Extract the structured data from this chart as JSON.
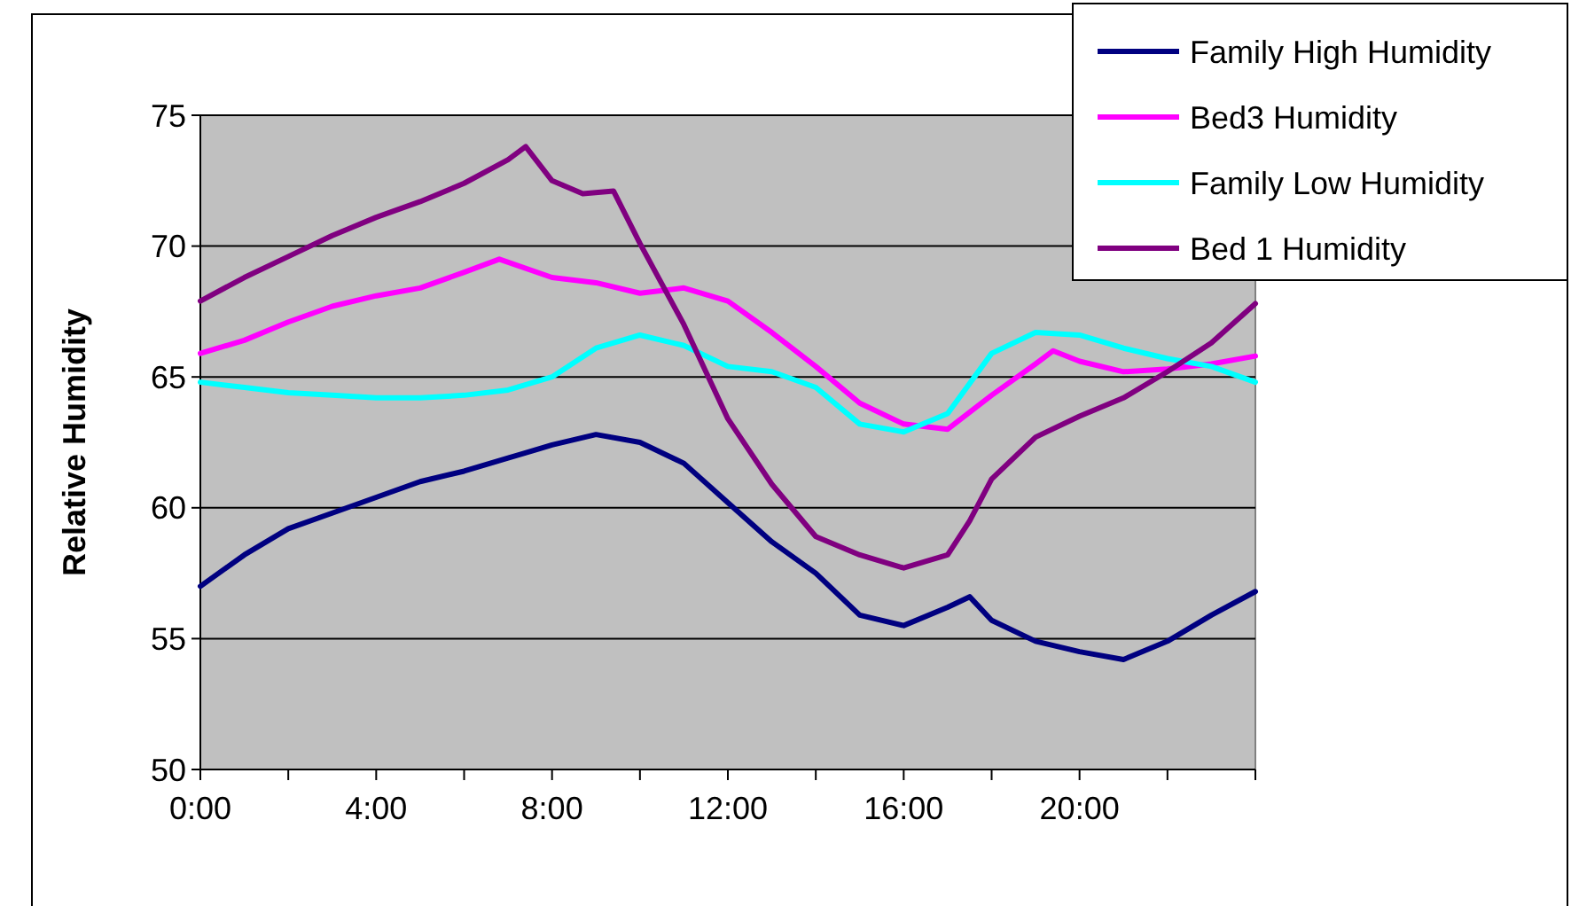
{
  "chart_data": {
    "type": "line",
    "ylabel": "Relative Humidity",
    "xlim": [
      0,
      24
    ],
    "ylim": [
      50,
      75
    ],
    "xticks": [
      {
        "value": 0,
        "label": "0:00"
      },
      {
        "value": 2,
        "label": null
      },
      {
        "value": 4,
        "label": "4:00"
      },
      {
        "value": 6,
        "label": null
      },
      {
        "value": 8,
        "label": "8:00"
      },
      {
        "value": 10,
        "label": null
      },
      {
        "value": 12,
        "label": "12:00"
      },
      {
        "value": 14,
        "label": null
      },
      {
        "value": 16,
        "label": "16:00"
      },
      {
        "value": 18,
        "label": null
      },
      {
        "value": 20,
        "label": "20:00"
      },
      {
        "value": 22,
        "label": null
      },
      {
        "value": 24,
        "label": null
      }
    ],
    "yticks": [
      50,
      55,
      60,
      65,
      70,
      75
    ],
    "grid": "y",
    "legend": "top right",
    "marker": "none",
    "line_style": "solid",
    "series": [
      {
        "name": "Family High Humidity",
        "color": "#000080",
        "x": [
          0,
          1,
          2,
          3,
          4,
          5,
          6,
          7,
          8,
          9,
          10,
          11,
          12,
          13,
          14,
          15,
          16,
          17,
          17.5,
          18,
          19,
          20,
          21,
          22,
          23,
          24
        ],
        "values": [
          57.0,
          58.2,
          59.2,
          59.8,
          60.4,
          61.0,
          61.4,
          61.9,
          62.4,
          62.8,
          62.5,
          61.7,
          60.2,
          58.7,
          57.5,
          55.9,
          55.5,
          56.2,
          56.6,
          55.7,
          54.9,
          54.5,
          54.2,
          54.9,
          55.9,
          56.8
        ]
      },
      {
        "name": "Bed3 Humidity",
        "color": "#ff00ff",
        "x": [
          0,
          1,
          2,
          3,
          4,
          5,
          6,
          6.8,
          8,
          9,
          10,
          11,
          12,
          13,
          14,
          15,
          16,
          17,
          18,
          19,
          19.4,
          20,
          21,
          22,
          23,
          24
        ],
        "values": [
          65.9,
          66.4,
          67.1,
          67.7,
          68.1,
          68.4,
          69.0,
          69.5,
          68.8,
          68.6,
          68.2,
          68.4,
          67.9,
          66.7,
          65.4,
          64.0,
          63.2,
          63.0,
          64.3,
          65.5,
          66.0,
          65.6,
          65.2,
          65.3,
          65.5,
          65.8
        ]
      },
      {
        "name": "Family Low Humidity",
        "color": "#00ffff",
        "x": [
          0,
          1,
          2,
          3,
          4,
          5,
          6,
          7,
          8,
          9,
          10,
          11,
          12,
          13,
          14,
          15,
          16,
          17,
          18,
          19,
          20,
          21,
          22,
          23,
          24
        ],
        "values": [
          64.8,
          64.6,
          64.4,
          64.3,
          64.2,
          64.2,
          64.3,
          64.5,
          65.0,
          66.1,
          66.6,
          66.2,
          65.4,
          65.2,
          64.6,
          63.2,
          62.9,
          63.6,
          65.9,
          66.7,
          66.6,
          66.1,
          65.7,
          65.4,
          64.8
        ]
      },
      {
        "name": "Bed 1 Humidity",
        "color": "#800080",
        "x": [
          0,
          1,
          2,
          3,
          4,
          5,
          6,
          7,
          7.4,
          8,
          8.7,
          9.4,
          10,
          11,
          12,
          13,
          14,
          15,
          16,
          17,
          17.5,
          18,
          19,
          20,
          21,
          22,
          23,
          24
        ],
        "values": [
          67.9,
          68.8,
          69.6,
          70.4,
          71.1,
          71.7,
          72.4,
          73.3,
          73.8,
          72.5,
          72.0,
          72.1,
          70.1,
          67.0,
          63.4,
          60.9,
          58.9,
          58.2,
          57.7,
          58.2,
          59.5,
          61.1,
          62.7,
          63.5,
          64.2,
          65.2,
          66.3,
          67.8
        ]
      }
    ]
  }
}
